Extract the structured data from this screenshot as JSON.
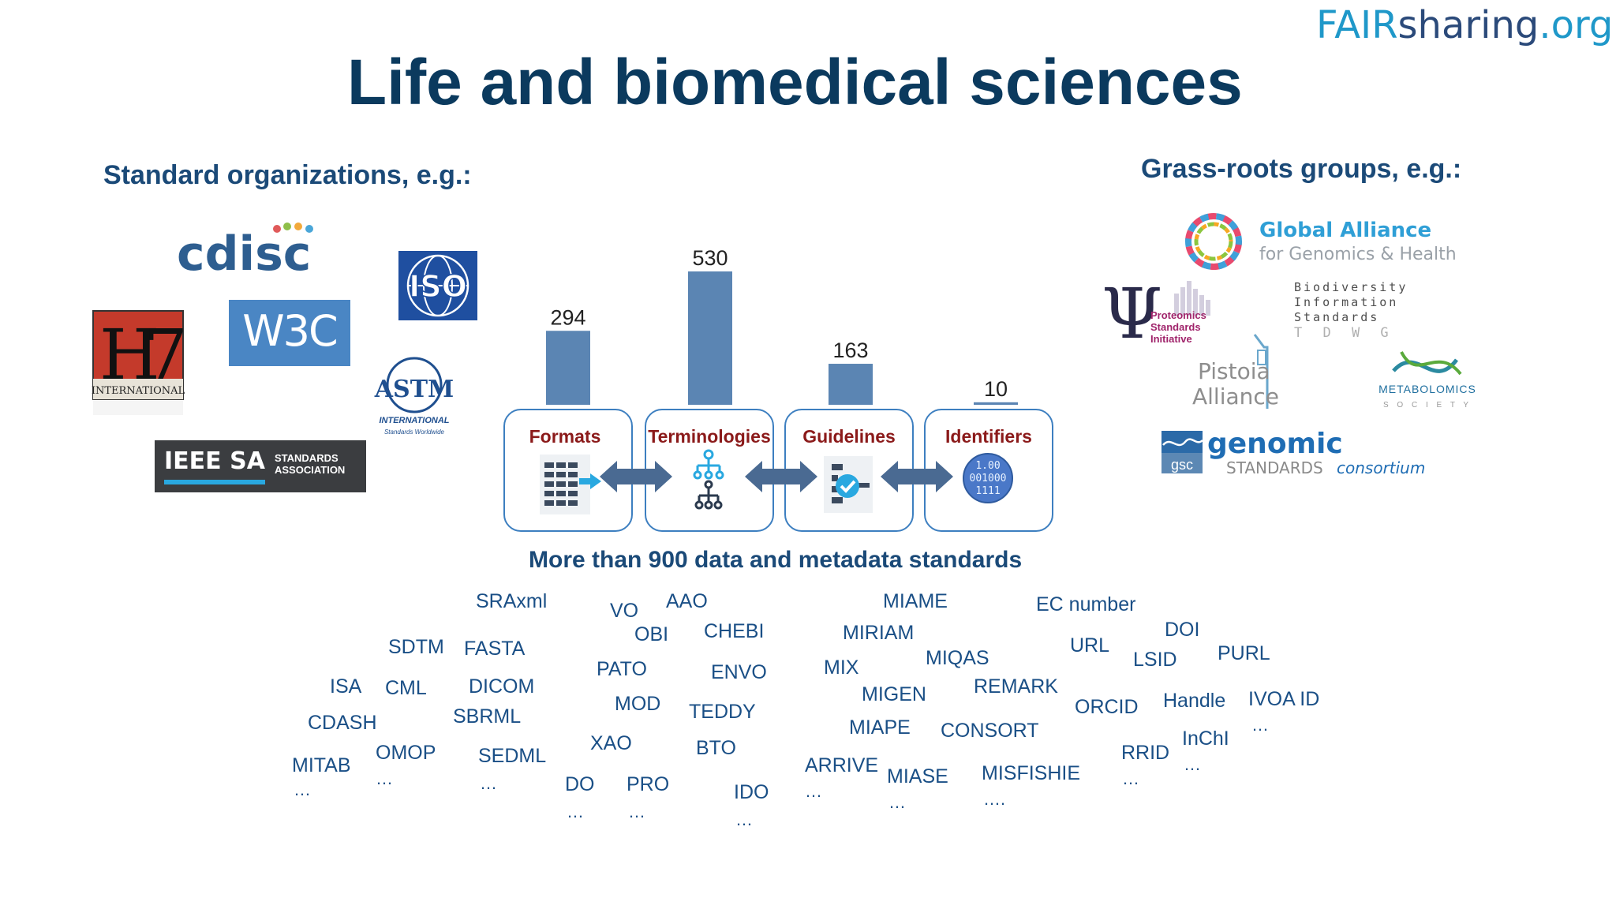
{
  "brand": {
    "part1": "FAIR",
    "part2": "sharing",
    "part3": ".org"
  },
  "title": "Life and biomedical sciences",
  "standard_orgs": {
    "heading": "Standard organizations, e.g.:",
    "logos": {
      "cdisc": "cdisc",
      "hl7": "H",
      "hl7_seven": "7",
      "hl7_intl": "INTERNATIONAL",
      "w3c": "W3C",
      "iso": "ISO",
      "astm": "ASTM",
      "astm_intl": "INTERNATIONAL",
      "astm_tag": "Standards Worldwide",
      "ieee_a": "IEEE SA",
      "ieee_b1": "STANDARDS",
      "ieee_b2": "ASSOCIATION"
    }
  },
  "grassroots": {
    "heading": "Grass-roots groups, e.g.:",
    "logos": {
      "ga4gh_1": "Global Alliance",
      "ga4gh_2": "for Genomics & Health",
      "psi_symbol": "Ψ",
      "psi_1": "Proteomics",
      "psi_2": "Standards",
      "psi_3": "Initiative",
      "tdwg_1": "Biodiversity",
      "tdwg_2": "Information",
      "tdwg_3": "Standards",
      "tdwg_4": "T D W G",
      "pistoia_1": "Pistoia",
      "pistoia_2": "Alliance",
      "metab_1": "METABOLOMICS",
      "metab_2": "S O C I E T Y",
      "gsc_badge": "gsc",
      "gsc_1": "genomic",
      "gsc_2": "STANDARDS",
      "gsc_3": "consortium"
    }
  },
  "chart_data": {
    "type": "bar",
    "categories": [
      "Formats",
      "Terminologies",
      "Guidelines",
      "Identifiers"
    ],
    "values": [
      294,
      530,
      163,
      10
    ],
    "title": "",
    "xlabel": "",
    "ylabel": "",
    "color": "#5b85b3",
    "summary": "More than 900 data and metadata standards"
  },
  "icons": {
    "identifiers_a": "1.00",
    "identifiers_b": "001000",
    "identifiers_c": "1111"
  },
  "terms": {
    "formats": [
      "SRAxml",
      "SDTM",
      "FASTA",
      "ISA",
      "CML",
      "DICOM",
      "CDASH",
      "SBRML",
      "OMOP",
      "MITAB",
      "SEDML"
    ],
    "formats_dots": [
      "…",
      "…",
      "…"
    ],
    "terminologies": [
      "VO",
      "AAO",
      "OBI",
      "CHEBI",
      "PATO",
      "ENVO",
      "MOD",
      "TEDDY",
      "XAO",
      "BTO",
      "DO",
      "PRO",
      "IDO"
    ],
    "terminologies_dots": [
      "…",
      "…",
      "…"
    ],
    "guidelines": [
      "MIAME",
      "MIRIAM",
      "MIQAS",
      "MIX",
      "MIGEN",
      "REMARK",
      "MIAPE",
      "CONSORT",
      "ARRIVE",
      "MIASE",
      "MISFISHIE"
    ],
    "guidelines_dots": [
      "…",
      "…",
      "…."
    ],
    "identifiers": [
      "EC number",
      "DOI",
      "URL",
      "LSID",
      "PURL",
      "ORCID",
      "Handle",
      "IVOA ID",
      "InChI",
      "RRID"
    ],
    "identifiers_dots": [
      "…",
      "…",
      "…"
    ]
  },
  "colors": {
    "title": "#0b3a5e",
    "heading": "#1b4a78",
    "terms": "#1a4f86",
    "category_label": "#8b1a1a",
    "box_border": "#3d7fc0",
    "bar": "#5b85b3",
    "arrow": "#4a6a92"
  }
}
